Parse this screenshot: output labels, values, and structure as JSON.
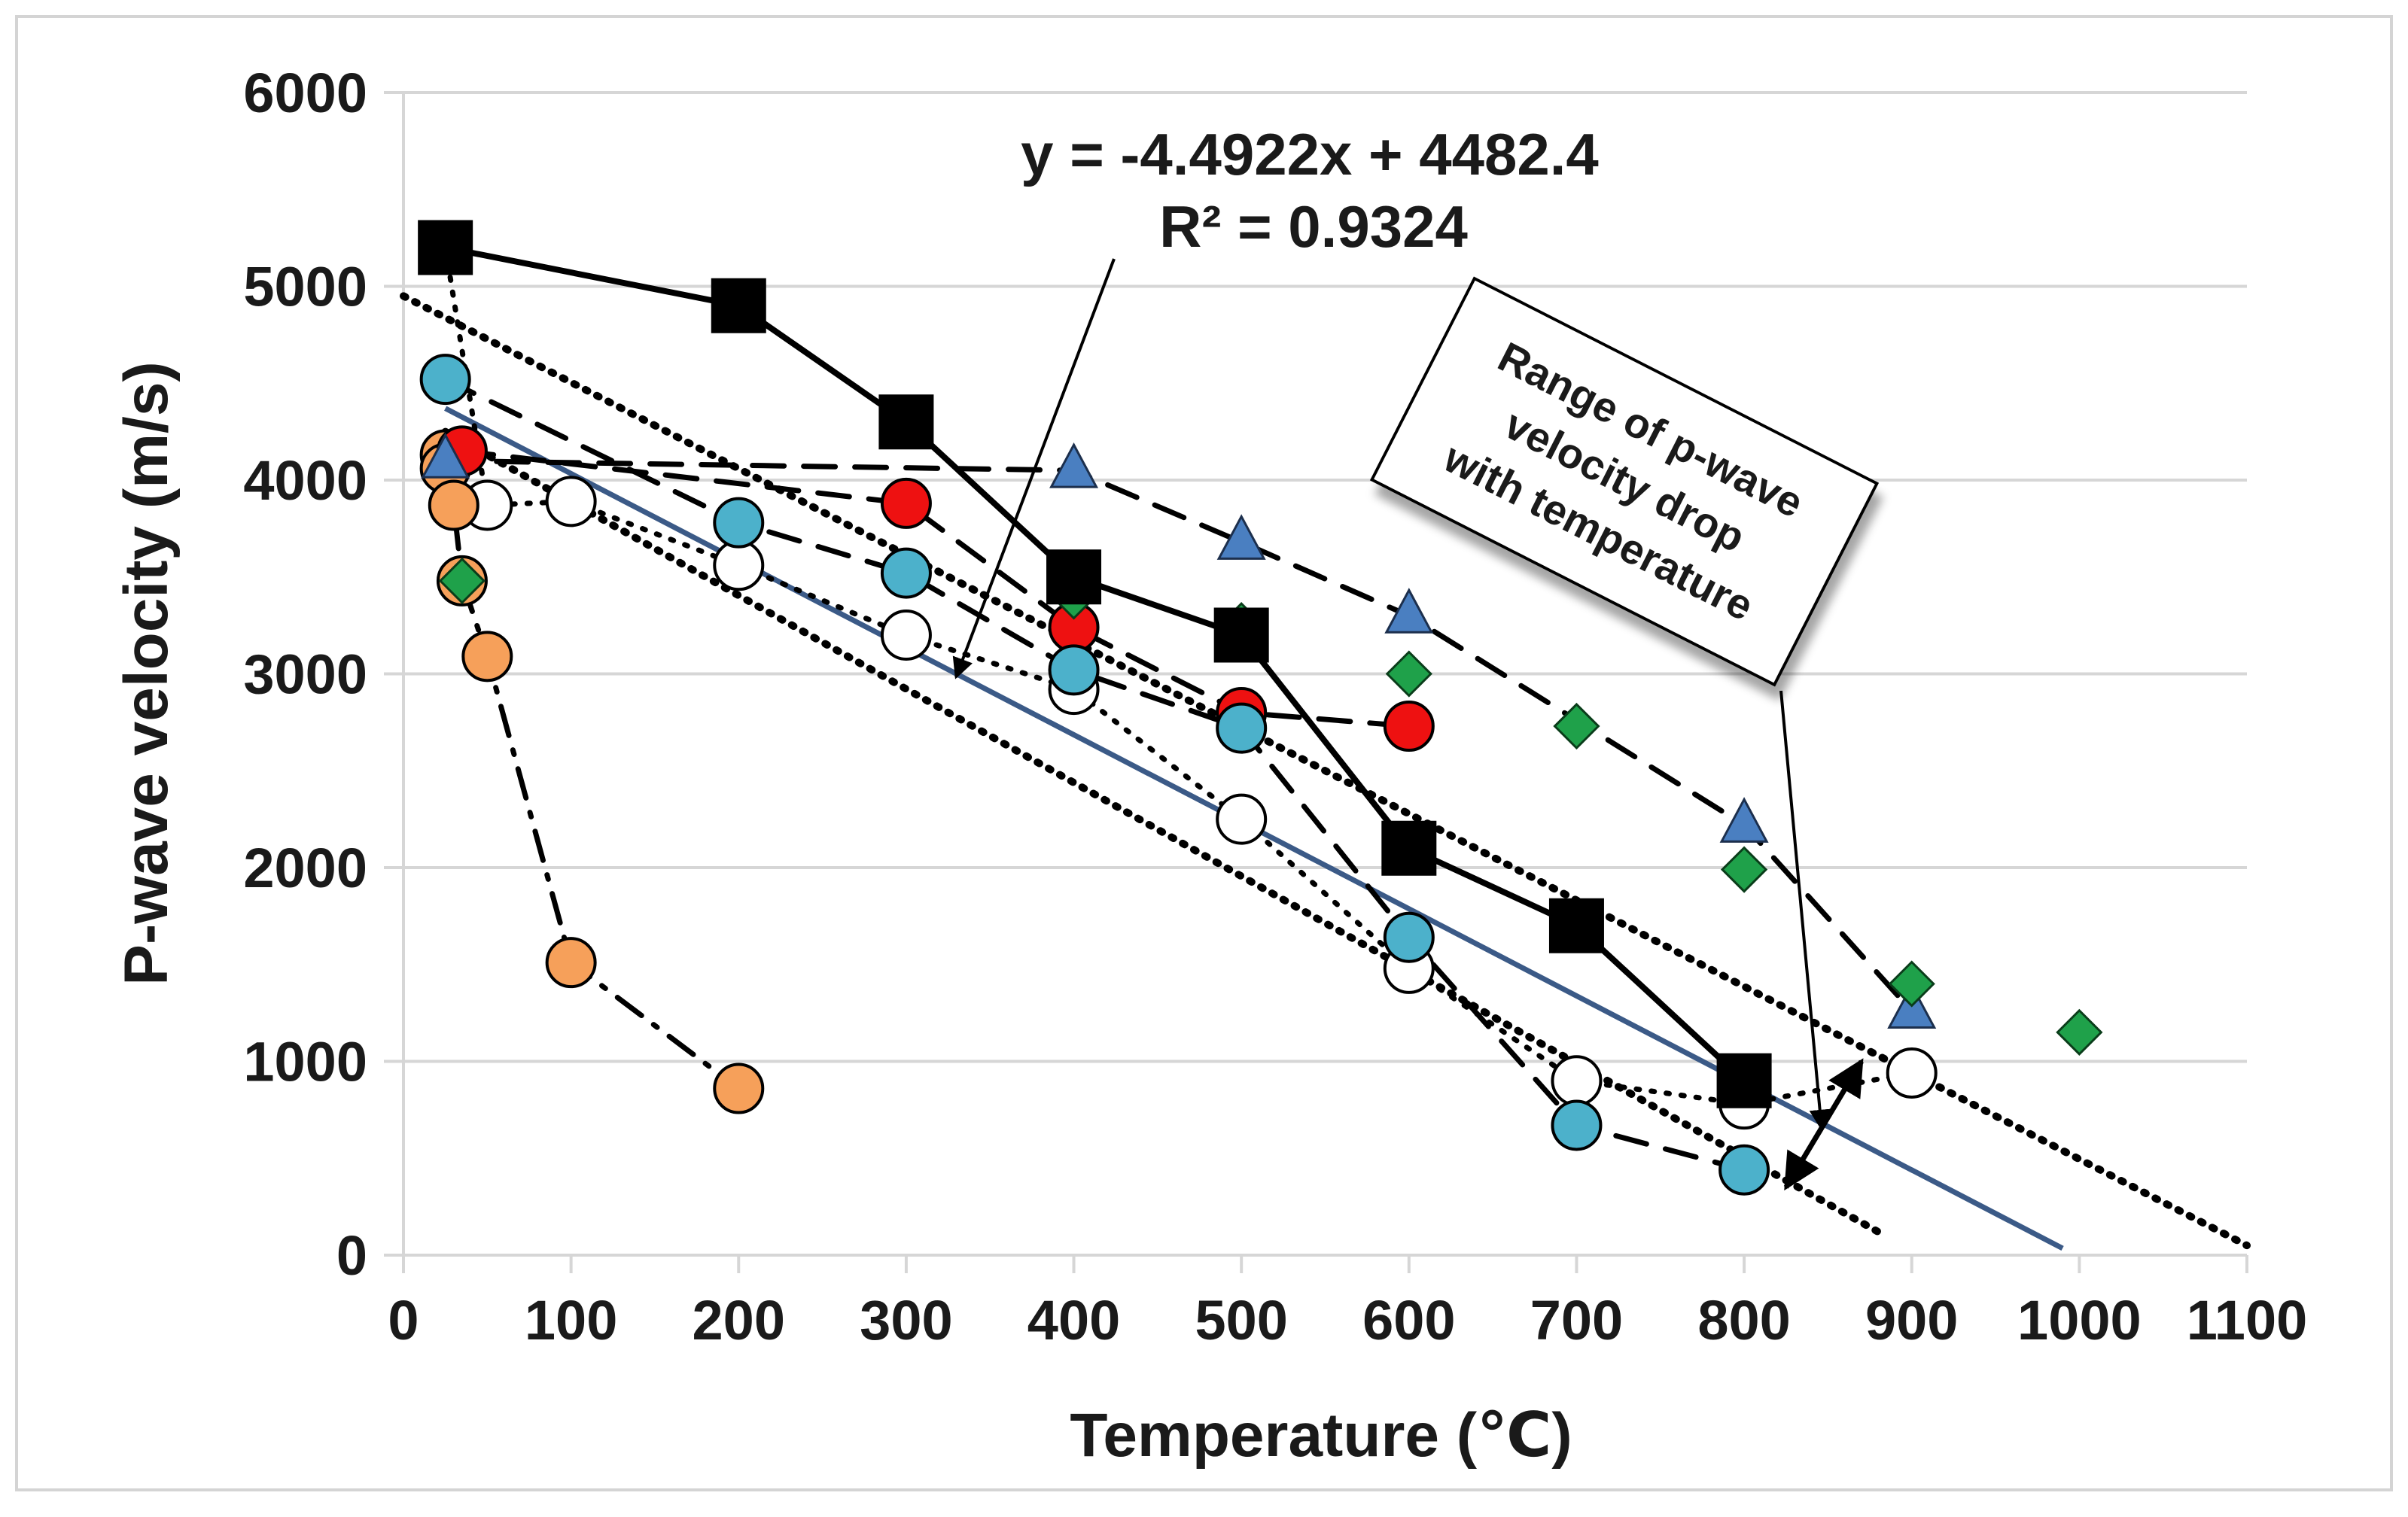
{
  "chart_data": {
    "type": "scatter",
    "title": "",
    "xlabel": "Temperature (℃)",
    "ylabel": "P-wave velocity (m/s)",
    "xlim": [
      0,
      1100
    ],
    "ylim": [
      0,
      6000
    ],
    "xticks": [
      "0",
      "100",
      "200",
      "300",
      "400",
      "500",
      "600",
      "700",
      "800",
      "900",
      "1000",
      "1100"
    ],
    "yticks": [
      "0",
      "1000",
      "2000",
      "3000",
      "4000",
      "5000",
      "6000"
    ],
    "grid": "horizontal",
    "series": [
      {
        "name": "black-squares",
        "marker": "square",
        "color": "#000000",
        "line": "solid",
        "x": [
          25,
          200,
          300,
          400,
          500,
          600,
          700,
          800
        ],
        "y": [
          5200,
          4900,
          4300,
          3500,
          3200,
          2100,
          1700,
          900
        ]
      },
      {
        "name": "blue-triangles",
        "marker": "triangle",
        "color": "#4a7fc1",
        "line": "dashed",
        "x": [
          25,
          400,
          500,
          600,
          800,
          900
        ],
        "y": [
          4100,
          4050,
          3680,
          3300,
          2220,
          1260
        ]
      },
      {
        "name": "green-diamonds",
        "marker": "diamond",
        "color": "#1fa14a",
        "line": "none",
        "x": [
          35,
          400,
          500,
          600,
          700,
          800,
          900,
          1000
        ],
        "y": [
          3480,
          3400,
          3250,
          3000,
          2730,
          1990,
          1400,
          1150
        ]
      },
      {
        "name": "red-circles",
        "marker": "circle",
        "color": "#ee1111",
        "line": "dashed",
        "x": [
          35,
          300,
          400,
          500,
          600
        ],
        "y": [
          4150,
          3880,
          3240,
          2800,
          2730
        ]
      },
      {
        "name": "teal-circles",
        "marker": "circle",
        "color": "#4cb1cb",
        "line": "dashed",
        "x": [
          25,
          200,
          300,
          400,
          500,
          600,
          700,
          800
        ],
        "y": [
          4520,
          3780,
          3520,
          3020,
          2720,
          1640,
          670,
          440
        ]
      },
      {
        "name": "open-circles",
        "marker": "circle",
        "color": "#ffffff",
        "line": "dotted",
        "x": [
          25,
          50,
          100,
          200,
          300,
          400,
          500,
          600,
          700,
          800,
          900
        ],
        "y": [
          5200,
          3870,
          3890,
          3560,
          3200,
          2920,
          2250,
          1480,
          900,
          780,
          940
        ]
      },
      {
        "name": "orange-circles",
        "marker": "circle",
        "color": "#f6a05a",
        "line": "dash-dot",
        "x": [
          25,
          25,
          30,
          35,
          50,
          100,
          200
        ],
        "y": [
          4130,
          4060,
          3870,
          3480,
          3090,
          1510,
          860
        ]
      }
    ],
    "trendline": {
      "equation": "y = -4.4922x + 4482.4",
      "r_squared": "R² = 0.9324",
      "slope": -4.4922,
      "intercept": 4482.4,
      "x_range": [
        25,
        990
      ],
      "color": "#3b5a87"
    },
    "range_bounds": {
      "upper": {
        "x": [
          0,
          1100
        ],
        "y": [
          4950,
          50
        ]
      },
      "lower": {
        "x": [
          25,
          880
        ],
        "y": [
          4250,
          120
        ]
      }
    },
    "range_arrow": {
      "x": [
        825,
        870
      ],
      "y": [
        350,
        1000
      ]
    },
    "annotations": {
      "equation_line1": "y = -4.4922x + 4482.4",
      "equation_line2": "R² = 0.9324",
      "range_box": [
        "Range of p-wave",
        "velocity drop",
        "with temperature"
      ]
    }
  }
}
